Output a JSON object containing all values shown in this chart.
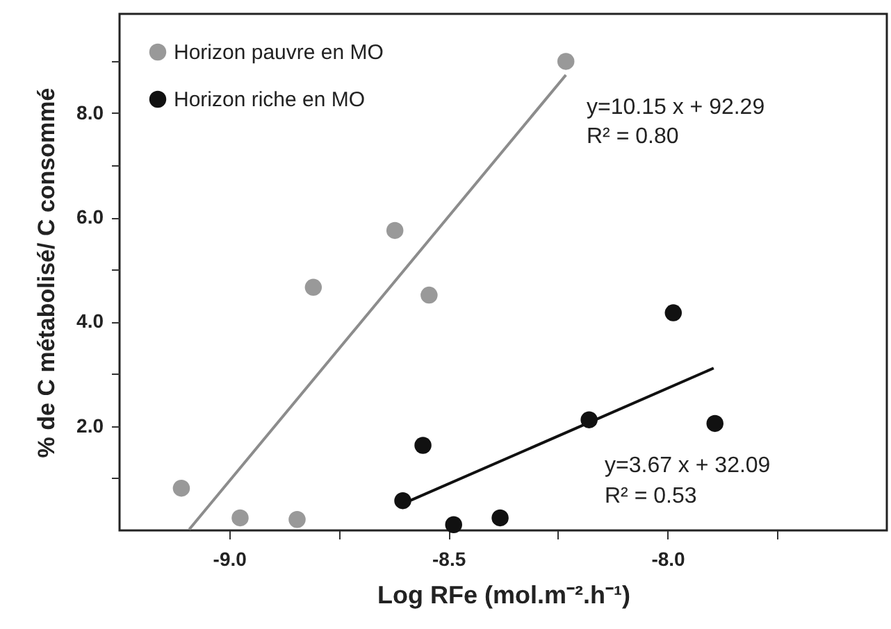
{
  "chart_data": {
    "type": "scatter",
    "xlabel": "Log RFe (mol.m⁻².h⁻¹)",
    "ylabel": "% de C métabolisé/ C consommé",
    "xlim": [
      -9.25,
      -7.5
    ],
    "ylim": [
      0,
      9.9
    ],
    "xticks": [
      {
        "value": -9,
        "label": "-9.0"
      },
      {
        "value": -8.75,
        "label": null
      },
      {
        "value": -8.5,
        "label": "-8.5"
      },
      {
        "value": -8.25,
        "label": null
      },
      {
        "value": -8,
        "label": "-8.0"
      },
      {
        "value": -7.75,
        "label": null
      }
    ],
    "yticks": [
      {
        "value": 1,
        "label": null
      },
      {
        "value": 2,
        "label": "2.0"
      },
      {
        "value": 3,
        "label": null
      },
      {
        "value": 4,
        "label": "4.0"
      },
      {
        "value": 5,
        "label": null
      },
      {
        "value": 6,
        "label": "6.0"
      },
      {
        "value": 7,
        "label": null
      },
      {
        "value": 8,
        "label": "8.0"
      },
      {
        "value": 9,
        "label": null
      }
    ],
    "legend": "top left",
    "grid": false,
    "series": [
      {
        "name": "Horizon pauvre en MO",
        "color": "#999999",
        "marker": "circle",
        "x": [
          -9.109,
          -8.975,
          -8.845,
          -8.808,
          -8.622,
          -8.544,
          -8.232
        ],
        "values": [
          0.81,
          0.24,
          0.21,
          4.66,
          5.75,
          4.51,
          8.99
        ]
      },
      {
        "name": "Horizon riche en MO",
        "color": "#111111",
        "marker": "circle",
        "x": [
          -8.604,
          -8.558,
          -8.488,
          -8.382,
          -8.179,
          -7.987,
          -7.892
        ],
        "values": [
          0.57,
          1.63,
          0.11,
          0.24,
          2.12,
          4.17,
          2.05
        ]
      },
      {
        "type": "line",
        "color": "#8c8c8c",
        "marker": "none",
        "x": [
          -9.091,
          -8.232
        ],
        "values": [
          0.02,
          8.73
        ]
      },
      {
        "type": "line",
        "color": "#111111",
        "marker": "none",
        "x": [
          -8.604,
          -7.895
        ],
        "values": [
          0.51,
          3.11
        ]
      }
    ],
    "annotations": [
      "y=10.15 x + 92.29",
      "R² = 0.80",
      "y=3.67 x + 32.09",
      "R² = 0.53"
    ]
  }
}
